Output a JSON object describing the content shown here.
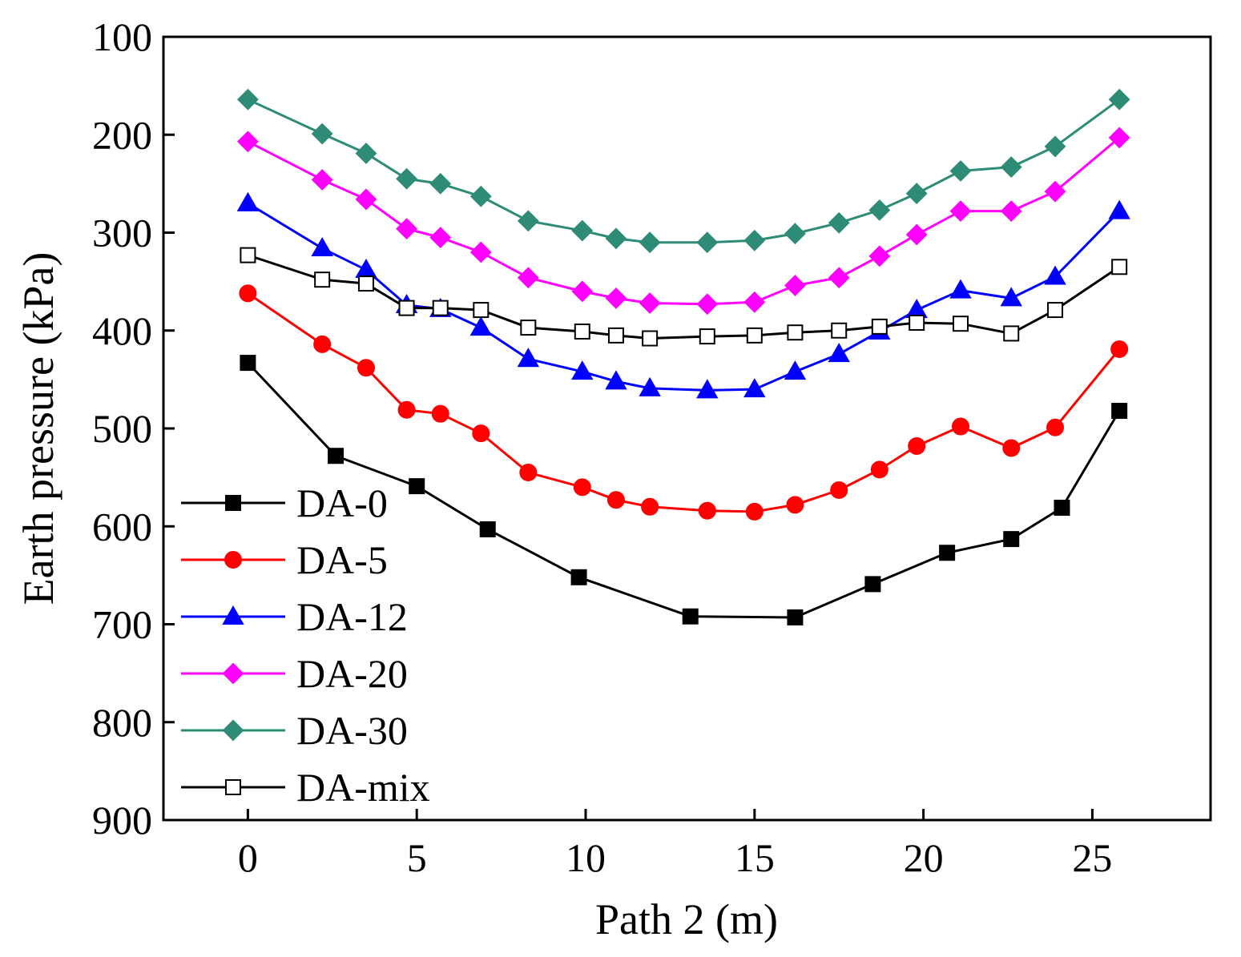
{
  "chart_data": {
    "type": "line",
    "title": "",
    "xlabel": "Path 2 (m)",
    "ylabel": "Earth pressure (kPa)",
    "xlim": [
      -2.5,
      28.5
    ],
    "ylim": [
      100,
      900
    ],
    "y_inverted": true,
    "x_ticks": [
      0,
      5,
      10,
      15,
      20,
      25
    ],
    "y_ticks": [
      100,
      200,
      300,
      400,
      500,
      600,
      700,
      800,
      900
    ],
    "grid": false,
    "legend_position": "bottom-left",
    "series": [
      {
        "name": "DA-0",
        "color": "#000000",
        "marker": "square",
        "filled": true,
        "x": [
          0,
          2.6,
          5.0,
          7.1,
          9.8,
          13.1,
          16.2,
          18.5,
          20.7,
          22.6,
          24.1,
          25.8
        ],
        "y": [
          433,
          528,
          559,
          603,
          652,
          692,
          693,
          659,
          627,
          613,
          581,
          482
        ]
      },
      {
        "name": "DA-5",
        "color": "#ff0000",
        "marker": "circle",
        "filled": true,
        "x": [
          0,
          2.2,
          3.5,
          4.7,
          5.7,
          6.9,
          8.3,
          9.9,
          10.9,
          11.9,
          13.6,
          15.0,
          16.2,
          17.5,
          18.7,
          19.8,
          21.1,
          22.6,
          23.9,
          25.8
        ],
        "y": [
          362,
          414,
          438,
          481,
          485,
          505,
          545,
          560,
          573,
          580,
          584,
          585,
          578,
          563,
          542,
          518,
          498,
          520,
          499,
          419
        ]
      },
      {
        "name": "DA-12",
        "color": "#0000ff",
        "marker": "triangle",
        "filled": true,
        "x": [
          0,
          2.2,
          3.5,
          4.7,
          5.7,
          6.9,
          8.3,
          9.9,
          10.9,
          11.9,
          13.6,
          15.0,
          16.2,
          17.5,
          18.7,
          19.8,
          21.1,
          22.6,
          23.9,
          25.8
        ],
        "y": [
          270,
          316,
          338,
          374,
          378,
          397,
          429,
          442,
          452,
          459,
          461,
          460,
          442,
          424,
          401,
          379,
          359,
          367,
          345,
          278
        ]
      },
      {
        "name": "DA-20",
        "color": "#ff00ff",
        "marker": "diamond",
        "filled": true,
        "x": [
          0,
          2.2,
          3.5,
          4.7,
          5.7,
          6.9,
          8.3,
          9.9,
          10.9,
          11.9,
          13.6,
          15.0,
          16.2,
          17.5,
          18.7,
          19.8,
          21.1,
          22.6,
          23.9,
          25.8
        ],
        "y": [
          207,
          246,
          266,
          296,
          305,
          320,
          346,
          360,
          367,
          372,
          373,
          371,
          354,
          346,
          324,
          302,
          278,
          278,
          258,
          203
        ]
      },
      {
        "name": "DA-30",
        "color": "#2e8b75",
        "marker": "diamond",
        "filled": true,
        "x": [
          0,
          2.2,
          3.5,
          4.7,
          5.7,
          6.9,
          8.3,
          9.9,
          10.9,
          11.9,
          13.6,
          15.0,
          16.2,
          17.5,
          18.7,
          19.8,
          21.1,
          22.6,
          23.9,
          25.8
        ],
        "y": [
          164,
          199,
          219,
          245,
          250,
          263,
          288,
          298,
          306,
          310,
          310,
          308,
          301,
          290,
          277,
          260,
          237,
          233,
          212,
          164
        ]
      },
      {
        "name": "DA-mix",
        "color": "#000000",
        "marker": "square",
        "filled": false,
        "x": [
          0,
          2.2,
          3.5,
          4.7,
          5.7,
          6.9,
          8.3,
          9.9,
          10.9,
          11.9,
          13.6,
          15.0,
          16.2,
          17.5,
          18.7,
          19.8,
          21.1,
          22.6,
          23.9,
          25.8
        ],
        "y": [
          323,
          348,
          352,
          377,
          377,
          379,
          397,
          401,
          405,
          408,
          406,
          405,
          402,
          400,
          396,
          392,
          393,
          403,
          379,
          335
        ]
      }
    ]
  }
}
